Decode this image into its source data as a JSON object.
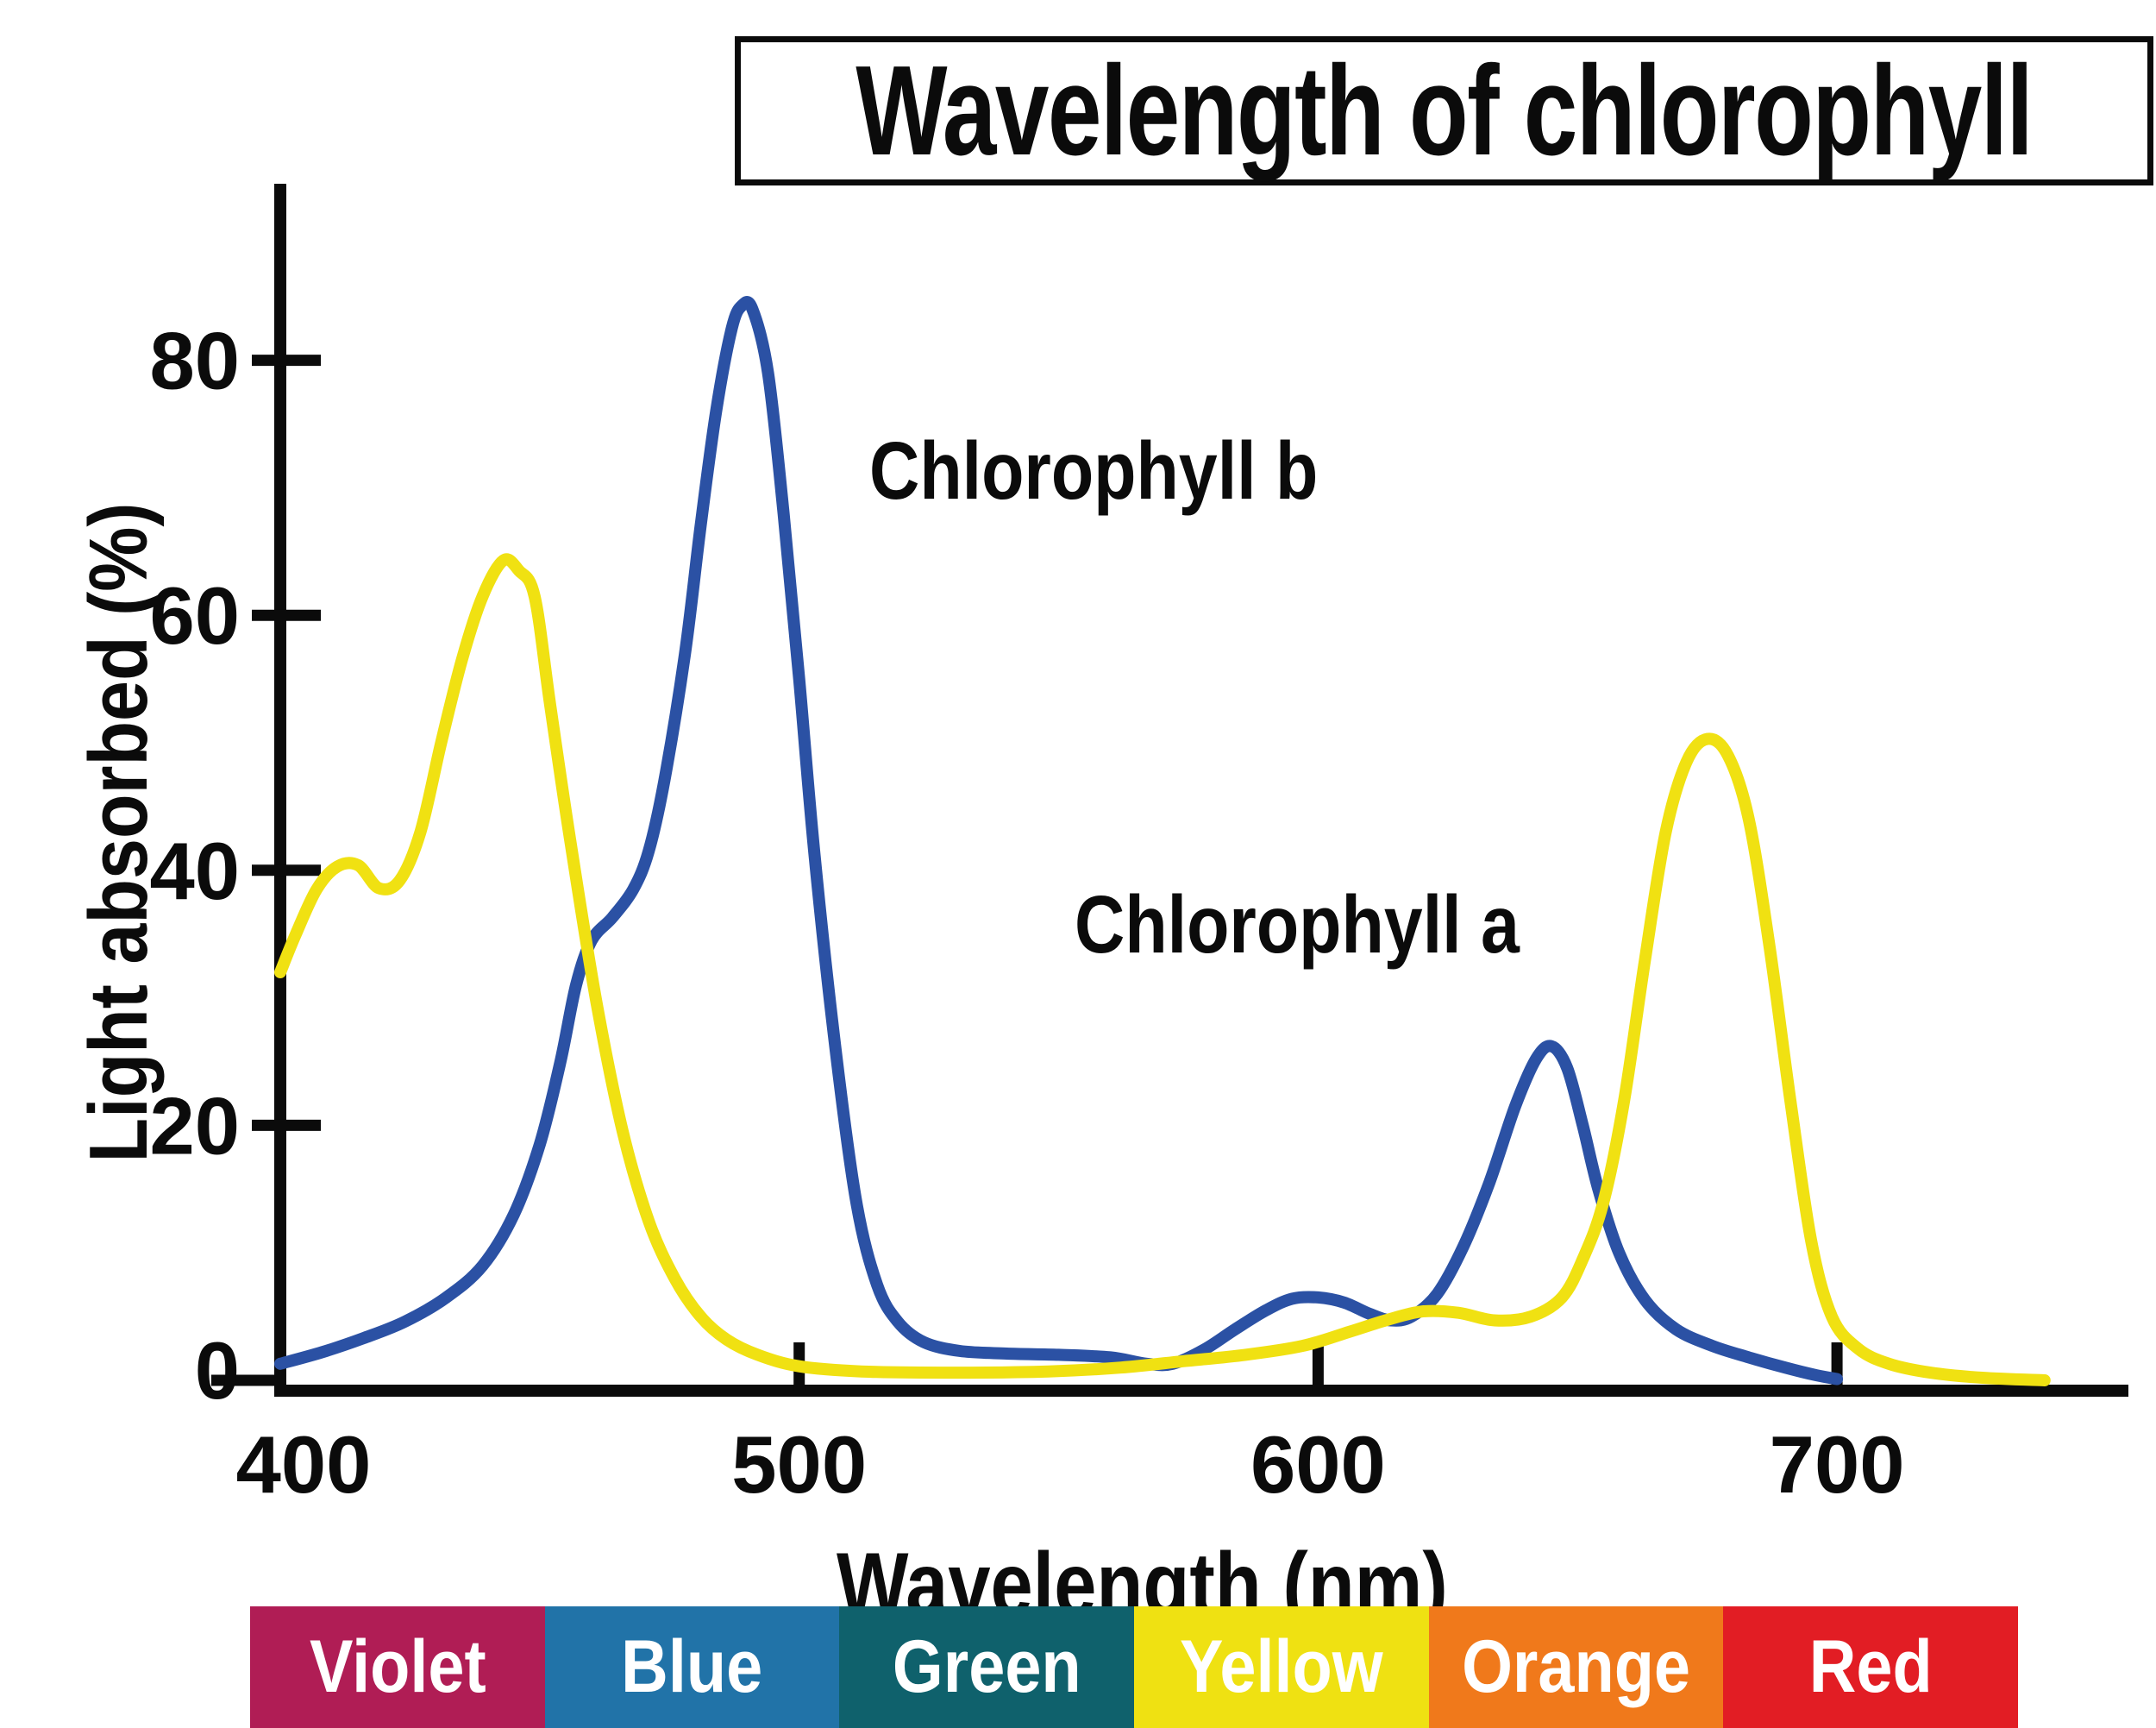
{
  "title": "Wavelength of chlorophyll",
  "annotations": {
    "chl_b": {
      "text": "Chlorophyll b"
    },
    "chl_a": {
      "text": "Chlorophyll a"
    }
  },
  "y_axis": {
    "label": "Light absorbed (%)",
    "ticks": [
      0,
      20,
      40,
      60,
      80
    ]
  },
  "x_axis": {
    "label": "Wavelength (nm)",
    "ticks": [
      400,
      500,
      600,
      700
    ]
  },
  "spectrum_band": {
    "text_color": "#ffffff",
    "segments": [
      {
        "label": "Violet",
        "color": "#b01d55"
      },
      {
        "label": "Blue",
        "color": "#2173a8"
      },
      {
        "label": "Green",
        "color": "#0f616c"
      },
      {
        "label": "Yellow",
        "color": "#efe112"
      },
      {
        "label": "Orange",
        "color": "#f0791b"
      },
      {
        "label": "Red",
        "color": "#e21d24"
      }
    ]
  },
  "chart_data": {
    "type": "line",
    "title": "Wavelength of chlorophyll",
    "xlabel": "Wavelength (nm)",
    "ylabel": "Light absorbed (%)",
    "xlim": [
      400,
      756
    ],
    "ylim": [
      0,
      90
    ],
    "x_ticks": [
      400,
      500,
      600,
      700
    ],
    "y_ticks": [
      0,
      20,
      40,
      60,
      80
    ],
    "grid": false,
    "legend_position": "inline-annotations",
    "axis_color": "#0b0b0b",
    "series": [
      {
        "name": "Chlorophyll b",
        "color": "#2b51a4",
        "points": [
          [
            400,
            1.3
          ],
          [
            408,
            2.2
          ],
          [
            416,
            3.3
          ],
          [
            424,
            4.6
          ],
          [
            432,
            6.5
          ],
          [
            439,
            9
          ],
          [
            445,
            13
          ],
          [
            450,
            18.5
          ],
          [
            454,
            25
          ],
          [
            457,
            31
          ],
          [
            460,
            34.5
          ],
          [
            464,
            36.3
          ],
          [
            468,
            38.5
          ],
          [
            471,
            41.5
          ],
          [
            474,
            47
          ],
          [
            478,
            57
          ],
          [
            481,
            67
          ],
          [
            484,
            76
          ],
          [
            487,
            82.5
          ],
          [
            489,
            84.3
          ],
          [
            491,
            84
          ],
          [
            494,
            79
          ],
          [
            497,
            68
          ],
          [
            500,
            55
          ],
          [
            503,
            41
          ],
          [
            507,
            26
          ],
          [
            511,
            14
          ],
          [
            515,
            7.5
          ],
          [
            519,
            4.6
          ],
          [
            524,
            3
          ],
          [
            531,
            2.3
          ],
          [
            540,
            2.1
          ],
          [
            550,
            2
          ],
          [
            560,
            1.8
          ],
          [
            567,
            1.3
          ],
          [
            572,
            1.3
          ],
          [
            578,
            2.4
          ],
          [
            584,
            4
          ],
          [
            590,
            5.5
          ],
          [
            595,
            6.4
          ],
          [
            600,
            6.5
          ],
          [
            605,
            6.1
          ],
          [
            610,
            5.2
          ],
          [
            614,
            4.7
          ],
          [
            618,
            5
          ],
          [
            623,
            6.8
          ],
          [
            628,
            10.5
          ],
          [
            633,
            15.5
          ],
          [
            638,
            21.5
          ],
          [
            642,
            25.2
          ],
          [
            645,
            26.2
          ],
          [
            648,
            24.5
          ],
          [
            651,
            20
          ],
          [
            654,
            15
          ],
          [
            658,
            10
          ],
          [
            663,
            6.3
          ],
          [
            669,
            4
          ],
          [
            676,
            2.7
          ],
          [
            683,
            1.8
          ],
          [
            690,
            1
          ],
          [
            696,
            0.4
          ],
          [
            700,
            0.1
          ]
        ]
      },
      {
        "name": "Chlorophyll a",
        "color": "#f0e112",
        "points": [
          [
            400,
            32
          ],
          [
            403,
            35
          ],
          [
            407,
            38.5
          ],
          [
            411,
            40.3
          ],
          [
            415,
            40.4
          ],
          [
            419,
            38.6
          ],
          [
            423,
            39.2
          ],
          [
            427,
            43
          ],
          [
            431,
            50
          ],
          [
            435,
            56.5
          ],
          [
            439,
            61.5
          ],
          [
            443,
            64.3
          ],
          [
            446,
            63.5
          ],
          [
            449,
            61.5
          ],
          [
            452,
            53
          ],
          [
            456,
            42
          ],
          [
            461,
            29.5
          ],
          [
            466,
            19.5
          ],
          [
            471,
            12.5
          ],
          [
            476,
            8
          ],
          [
            481,
            5
          ],
          [
            486,
            3.2
          ],
          [
            492,
            2
          ],
          [
            500,
            1.1
          ],
          [
            512,
            0.7
          ],
          [
            530,
            0.6
          ],
          [
            548,
            0.7
          ],
          [
            562,
            1
          ],
          [
            574,
            1.5
          ],
          [
            586,
            2
          ],
          [
            597,
            2.7
          ],
          [
            606,
            3.8
          ],
          [
            613,
            4.7
          ],
          [
            620,
            5.4
          ],
          [
            627,
            5.3
          ],
          [
            634,
            4.7
          ],
          [
            641,
            5
          ],
          [
            647,
            6.5
          ],
          [
            651,
            9.5
          ],
          [
            655,
            14
          ],
          [
            659,
            22
          ],
          [
            663,
            33
          ],
          [
            667,
            43
          ],
          [
            671,
            48.5
          ],
          [
            675,
            50.3
          ],
          [
            679,
            49
          ],
          [
            683,
            44
          ],
          [
            687,
            34
          ],
          [
            691,
            22
          ],
          [
            695,
            11
          ],
          [
            699,
            5
          ],
          [
            704,
            2.5
          ],
          [
            710,
            1.3
          ],
          [
            718,
            0.6
          ],
          [
            728,
            0.2
          ],
          [
            740,
            0
          ]
        ]
      }
    ]
  }
}
